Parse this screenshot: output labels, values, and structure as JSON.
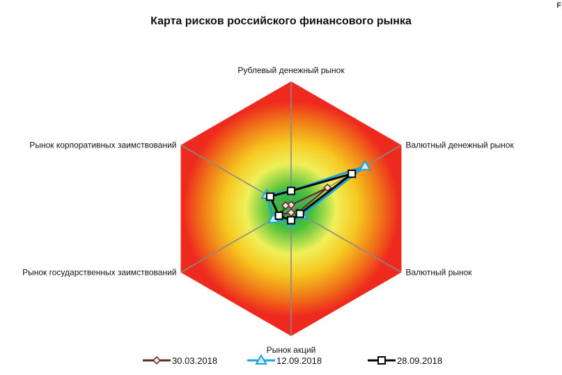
{
  "chart_data": {
    "type": "radar",
    "title": "Карта рисков российского финансового рынка",
    "corner_mark": "F",
    "axes": [
      "Рублевый денежный рынок",
      "Валютный денежный рынок",
      "Валютный рынок",
      "Рынок акций",
      "Рынок государственных заимствований",
      "Рынок корпоративных заимствований"
    ],
    "range": [
      0,
      10
    ],
    "legend_position": "bottom",
    "series": [
      {
        "name": "30.03.2018",
        "color": "#5a2a20",
        "marker": "diamond",
        "values": [
          0.3,
          3.3,
          0.6,
          0.3,
          0.9,
          0.5
        ]
      },
      {
        "name": "12.09.2018",
        "color": "#1ba3dc",
        "marker": "triangle",
        "values": [
          1.4,
          6.7,
          1.0,
          1.0,
          1.6,
          2.2
        ]
      },
      {
        "name": "28.09.2018",
        "color": "#000000",
        "marker": "square",
        "values": [
          1.4,
          5.5,
          0.8,
          0.9,
          1.1,
          1.9
        ]
      }
    ]
  }
}
